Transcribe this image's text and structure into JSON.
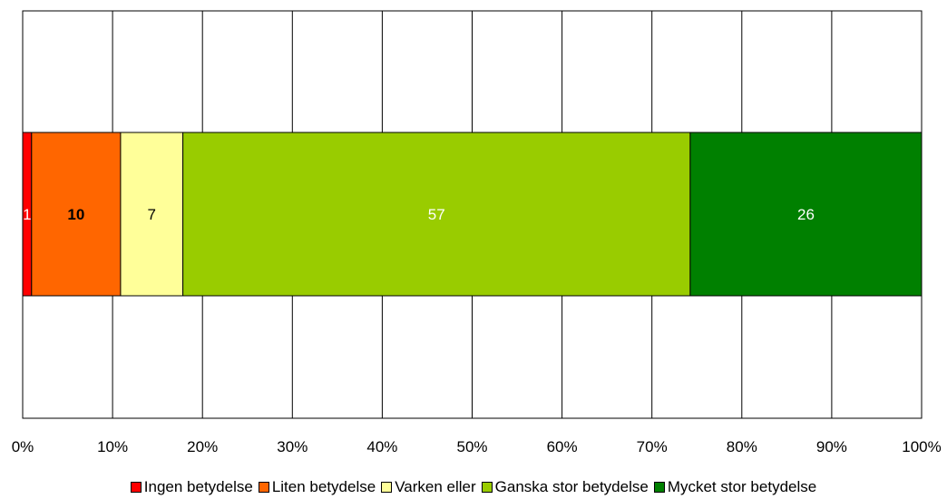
{
  "chart_data": {
    "type": "bar",
    "orientation": "horizontal",
    "stacked": "percent",
    "categories": [
      ""
    ],
    "series": [
      {
        "name": "Ingen betydelse",
        "values": [
          1
        ],
        "color": "#ff0000",
        "label_color": "#ffffff",
        "label_bold": false
      },
      {
        "name": "Liten betydelse",
        "values": [
          10
        ],
        "color": "#ff6600",
        "label_color": "#000000",
        "label_bold": true
      },
      {
        "name": "Varken eller",
        "values": [
          7
        ],
        "color": "#ffff99",
        "label_color": "#000000",
        "label_bold": false
      },
      {
        "name": "Ganska stor betydelse",
        "values": [
          57
        ],
        "color": "#99cc00",
        "label_color": "#ffffff",
        "label_bold": false
      },
      {
        "name": "Mycket stor betydelse",
        "values": [
          26
        ],
        "color": "#008000",
        "label_color": "#ffffff",
        "label_bold": false
      }
    ],
    "xlim": [
      0,
      100
    ],
    "x_ticks": [
      "0%",
      "10%",
      "20%",
      "30%",
      "40%",
      "50%",
      "60%",
      "70%",
      "80%",
      "90%",
      "100%"
    ],
    "grid": true,
    "legend_position": "bottom",
    "title": "",
    "xlabel": "",
    "ylabel": ""
  }
}
